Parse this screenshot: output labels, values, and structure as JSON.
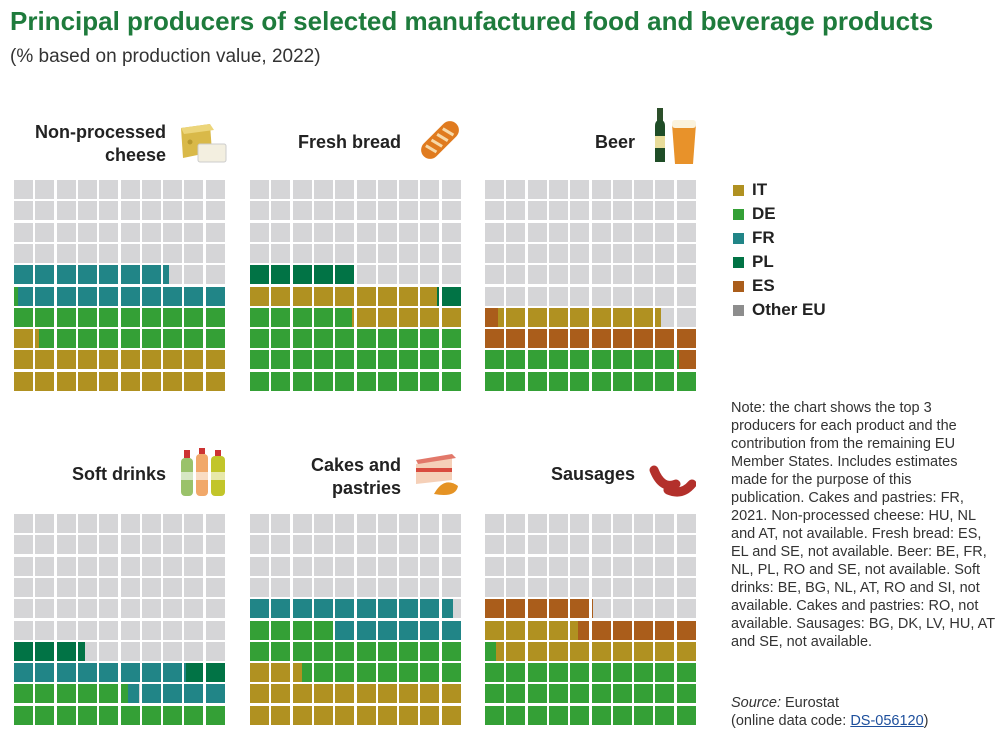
{
  "title": "Principal producers of selected manufactured food and beverage products",
  "subtitle": "(% based on production value, 2022)",
  "colors": {
    "IT": "#b09121",
    "DE": "#34a036",
    "FR": "#218587",
    "PL": "#017345",
    "ES": "#aa5d1b",
    "Other EU": "#d5d5d7"
  },
  "legend": [
    {
      "key": "IT",
      "label": "IT"
    },
    {
      "key": "DE",
      "label": "DE"
    },
    {
      "key": "FR",
      "label": "FR"
    },
    {
      "key": "PL",
      "label": "PL"
    },
    {
      "key": "ES",
      "label": "ES"
    },
    {
      "key": "Other EU",
      "label": "Other EU"
    }
  ],
  "chart_data": [
    {
      "type": "waffle",
      "title": "Non-processed cheese",
      "title_lines": [
        "Non-processed",
        "cheese"
      ],
      "icon": "cheese-icon",
      "series": [
        {
          "name": "IT",
          "value": 21.2
        },
        {
          "name": "DE",
          "value": 19.0
        },
        {
          "name": "FR",
          "value": 17.1
        },
        {
          "name": "Other EU",
          "value": 42.7
        }
      ]
    },
    {
      "type": "waffle",
      "title": "Fresh bread",
      "title_lines": [
        "Fresh bread"
      ],
      "icon": "bread-icon",
      "series": [
        {
          "name": "DE",
          "value": 34.9
        },
        {
          "name": "IT",
          "value": 14.0
        },
        {
          "name": "PL",
          "value": 6.1
        },
        {
          "name": "Other EU",
          "value": 45.0
        }
      ]
    },
    {
      "type": "waffle",
      "title": "Beer",
      "title_lines": [
        "Beer"
      ],
      "icon": "beer-icon",
      "series": [
        {
          "name": "DE",
          "value": 19.1
        },
        {
          "name": "ES",
          "value": 11.6
        },
        {
          "name": "IT",
          "value": 7.6
        },
        {
          "name": "Other EU",
          "value": 61.7
        }
      ]
    },
    {
      "type": "waffle",
      "title": "Soft drinks",
      "title_lines": [
        "Soft drinks"
      ],
      "icon": "soft-drinks-icon",
      "series": [
        {
          "name": "DE",
          "value": 15.4
        },
        {
          "name": "FR",
          "value": 12.7
        },
        {
          "name": "PL",
          "value": 5.3
        },
        {
          "name": "Other EU",
          "value": 66.6
        }
      ]
    },
    {
      "type": "waffle",
      "title": "Cakes and pastries",
      "title_lines": [
        "Cakes and",
        "pastries"
      ],
      "icon": "cake-icon",
      "series": [
        {
          "name": "IT",
          "value": 22.5
        },
        {
          "name": "DE",
          "value": 21.5
        },
        {
          "name": "FR",
          "value": 15.6
        },
        {
          "name": "Other EU",
          "value": 40.4
        }
      ]
    },
    {
      "type": "waffle",
      "title": "Sausages",
      "title_lines": [
        "Sausages"
      ],
      "icon": "sausage-icon",
      "series": [
        {
          "name": "DE",
          "value": 30.6
        },
        {
          "name": "IT",
          "value": 13.8
        },
        {
          "name": "ES",
          "value": 10.7
        },
        {
          "name": "Other EU",
          "value": 44.9
        }
      ]
    }
  ],
  "note_lines": [
    "Note: the chart shows the top 3",
    "producers for each product and the",
    "contribution from the remaining EU",
    "Member States. Includes estimates",
    "made for the purpose of this",
    "publication. Cakes and pastries: FR,",
    "2021. Non-processed cheese: HU, NL",
    "and AT, not available. Fresh bread: ES,",
    "EL and SE, not available. Beer: BE, FR,",
    "NL, PL, RO and SE, not available. Soft",
    "drinks: BE, BG, NL, AT, RO and SI, not",
    "available. Cakes and pastries: RO, not",
    "available. Sausages: BG, DK, LV, HU, AT",
    "and SE, not available."
  ],
  "source": {
    "label": "Source:",
    "value": "Eurostat",
    "code_prefix": "(online data code: ",
    "code": "DS-056120",
    "code_suffix": ")"
  }
}
